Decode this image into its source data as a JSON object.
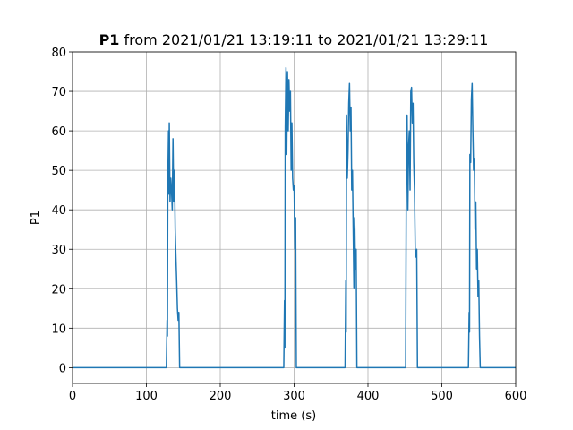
{
  "chart_data": {
    "type": "line",
    "title_parts": {
      "bold": "P1",
      "rest": "from 2021/01/21 13:19:11 to 2021/01/21 13:29:11"
    },
    "xlabel": "time (s)",
    "ylabel": "P1",
    "xlim": [
      0,
      600
    ],
    "xticks": [
      0,
      100,
      200,
      300,
      400,
      500,
      600
    ],
    "ylim": [
      -4,
      80
    ],
    "yticks": [
      0,
      10,
      20,
      30,
      40,
      50,
      60,
      70,
      80
    ],
    "grid": true,
    "series": [
      {
        "color": "#1f77b4",
        "x": [
          0,
          127,
          128,
          128.5,
          129,
          130,
          130.5,
          131,
          132,
          133,
          134,
          135,
          136,
          137,
          138,
          139,
          140,
          141,
          142,
          143,
          144,
          145,
          286,
          287,
          287.5,
          288,
          289,
          290,
          291,
          292,
          293,
          294,
          295,
          296,
          297,
          298,
          299,
          300,
          301,
          302,
          303,
          369,
          370,
          370.5,
          371,
          372,
          373,
          374,
          375,
          376,
          377,
          378,
          379,
          380,
          381,
          382,
          383,
          384,
          385,
          451,
          452,
          453,
          454,
          455,
          456,
          457,
          458,
          459,
          460,
          461,
          462,
          463,
          464,
          465,
          466,
          467,
          536,
          537,
          537.5,
          538,
          539,
          540,
          541,
          542,
          543,
          544,
          545,
          546,
          547,
          548,
          549,
          550,
          551,
          552,
          600
        ],
        "values": [
          0,
          0,
          12,
          8,
          47,
          60,
          44,
          62,
          42,
          48,
          45,
          40,
          58,
          42,
          50,
          35,
          28,
          22,
          15,
          12,
          14,
          0,
          0,
          17,
          5,
          61,
          76,
          54,
          75,
          60,
          73,
          65,
          70,
          50,
          62,
          48,
          45,
          46,
          30,
          38,
          0,
          0,
          22,
          9,
          64,
          48,
          55,
          67,
          72,
          60,
          66,
          45,
          50,
          35,
          20,
          38,
          25,
          30,
          0,
          0,
          52,
          64,
          40,
          56,
          60,
          45,
          70,
          71,
          62,
          67,
          52,
          45,
          30,
          28,
          30,
          0,
          0,
          14,
          9,
          54,
          52,
          68,
          72,
          60,
          50,
          53,
          35,
          42,
          25,
          30,
          18,
          22,
          8,
          0,
          0
        ]
      }
    ]
  }
}
